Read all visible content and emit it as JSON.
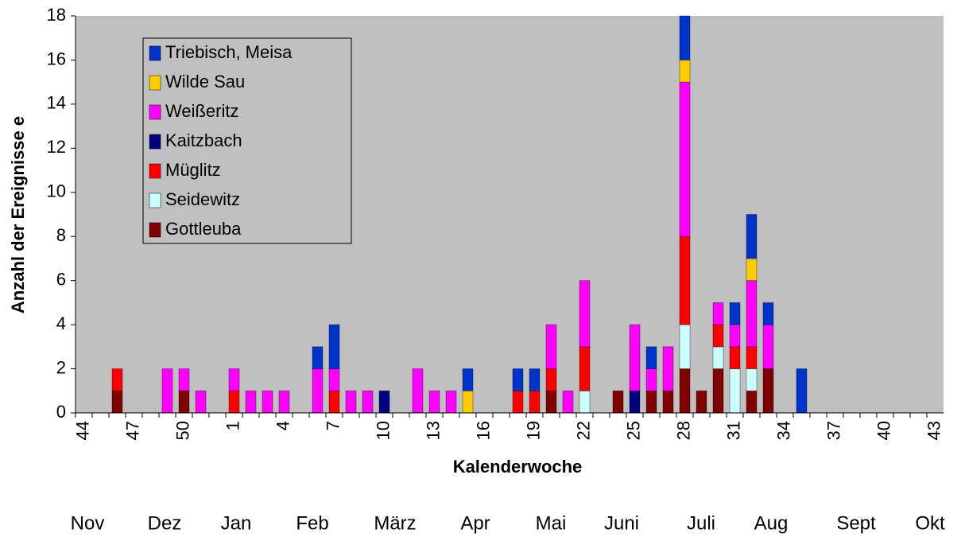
{
  "chart_data": {
    "type": "stacked_bar",
    "xlabel": "Kalenderwoche",
    "ylabel": "Anzahl der Ereignisse e",
    "categories": [
      "44",
      null,
      null,
      "47",
      null,
      null,
      "50",
      null,
      null,
      "1",
      null,
      null,
      "4",
      null,
      null,
      "7",
      null,
      null,
      "10",
      null,
      null,
      "13",
      null,
      null,
      "16",
      null,
      null,
      "19",
      null,
      null,
      "22",
      null,
      null,
      "25",
      null,
      null,
      "28",
      null,
      null,
      "31",
      null,
      null,
      "34",
      null,
      null,
      "37",
      null,
      null,
      "40",
      null,
      null,
      "43"
    ],
    "months": [
      "Nov",
      "Dez",
      "Jan",
      "Feb",
      "März",
      "Apr",
      "Mai",
      "Juni",
      "Juli",
      "Aug",
      "Sept",
      "Okt"
    ],
    "ylim": [
      0,
      18
    ],
    "yticks": [
      0,
      2,
      4,
      6,
      8,
      10,
      12,
      14,
      16,
      18
    ],
    "background": "#c0c0c0",
    "series": [
      {
        "name": "Gottleuba",
        "color": "#800000",
        "values": [
          0,
          0,
          1,
          0,
          0,
          0,
          1,
          0,
          0,
          0,
          0,
          0,
          0,
          0,
          0,
          0,
          0,
          0,
          0,
          0,
          0,
          0,
          0,
          0,
          0,
          0,
          0,
          0,
          1,
          0,
          0,
          0,
          1,
          0,
          1,
          1,
          2,
          1,
          2,
          0,
          1,
          2,
          0,
          0,
          0,
          0,
          0,
          0,
          0,
          0,
          0,
          0
        ]
      },
      {
        "name": "Seidewitz",
        "color": "#ccffff",
        "values": [
          0,
          0,
          0,
          0,
          0,
          0,
          0,
          0,
          0,
          0,
          0,
          0,
          0,
          0,
          0,
          0,
          0,
          0,
          0,
          0,
          0,
          0,
          0,
          0,
          0,
          0,
          0,
          0,
          0,
          0,
          1,
          0,
          0,
          0,
          0,
          0,
          2,
          0,
          1,
          2,
          1,
          0,
          0,
          0,
          0,
          0,
          0,
          0,
          0,
          0,
          0,
          0
        ]
      },
      {
        "name": "Müglitz",
        "color": "#ff0000",
        "values": [
          0,
          0,
          1,
          0,
          0,
          0,
          0,
          0,
          0,
          1,
          0,
          0,
          0,
          0,
          0,
          1,
          0,
          0,
          0,
          0,
          0,
          0,
          0,
          0,
          0,
          0,
          1,
          1,
          1,
          0,
          2,
          0,
          0,
          0,
          0,
          0,
          4,
          0,
          1,
          1,
          1,
          0,
          0,
          0,
          0,
          0,
          0,
          0,
          0,
          0,
          0,
          0
        ]
      },
      {
        "name": "Kaitzbach",
        "color": "#000080",
        "values": [
          0,
          0,
          0,
          0,
          0,
          0,
          0,
          0,
          0,
          0,
          0,
          0,
          0,
          0,
          0,
          0,
          0,
          0,
          1,
          0,
          0,
          0,
          0,
          0,
          0,
          0,
          0,
          0,
          0,
          0,
          0,
          0,
          0,
          1,
          0,
          0,
          0,
          0,
          0,
          0,
          0,
          0,
          0,
          0,
          0,
          0,
          0,
          0,
          0,
          0,
          0,
          0
        ]
      },
      {
        "name": "Weißeritz",
        "color": "#ff00ff",
        "values": [
          0,
          0,
          0,
          0,
          0,
          2,
          1,
          1,
          0,
          1,
          1,
          1,
          1,
          0,
          2,
          1,
          1,
          1,
          0,
          0,
          2,
          1,
          1,
          0,
          0,
          0,
          0,
          0,
          2,
          1,
          3,
          0,
          0,
          3,
          1,
          2,
          7,
          0,
          1,
          1,
          3,
          2,
          0,
          0,
          0,
          0,
          0,
          0,
          0,
          0,
          0,
          0
        ]
      },
      {
        "name": "Wilde Sau",
        "color": "#ffcc00",
        "values": [
          0,
          0,
          0,
          0,
          0,
          0,
          0,
          0,
          0,
          0,
          0,
          0,
          0,
          0,
          0,
          0,
          0,
          0,
          0,
          0,
          0,
          0,
          0,
          1,
          0,
          0,
          0,
          0,
          0,
          0,
          0,
          0,
          0,
          0,
          0,
          0,
          1,
          0,
          0,
          0,
          1,
          0,
          0,
          0,
          0,
          0,
          0,
          0,
          0,
          0,
          0,
          0
        ]
      },
      {
        "name": "Triebisch, Meisa",
        "color": "#0033cc",
        "values": [
          0,
          0,
          0,
          0,
          0,
          0,
          0,
          0,
          0,
          0,
          0,
          0,
          0,
          0,
          1,
          2,
          0,
          0,
          0,
          0,
          0,
          0,
          0,
          1,
          0,
          0,
          1,
          1,
          0,
          0,
          0,
          0,
          0,
          0,
          1,
          0,
          2,
          0,
          0,
          1,
          2,
          1,
          0,
          2,
          0,
          0,
          0,
          0,
          0,
          0,
          0,
          0
        ]
      }
    ]
  }
}
